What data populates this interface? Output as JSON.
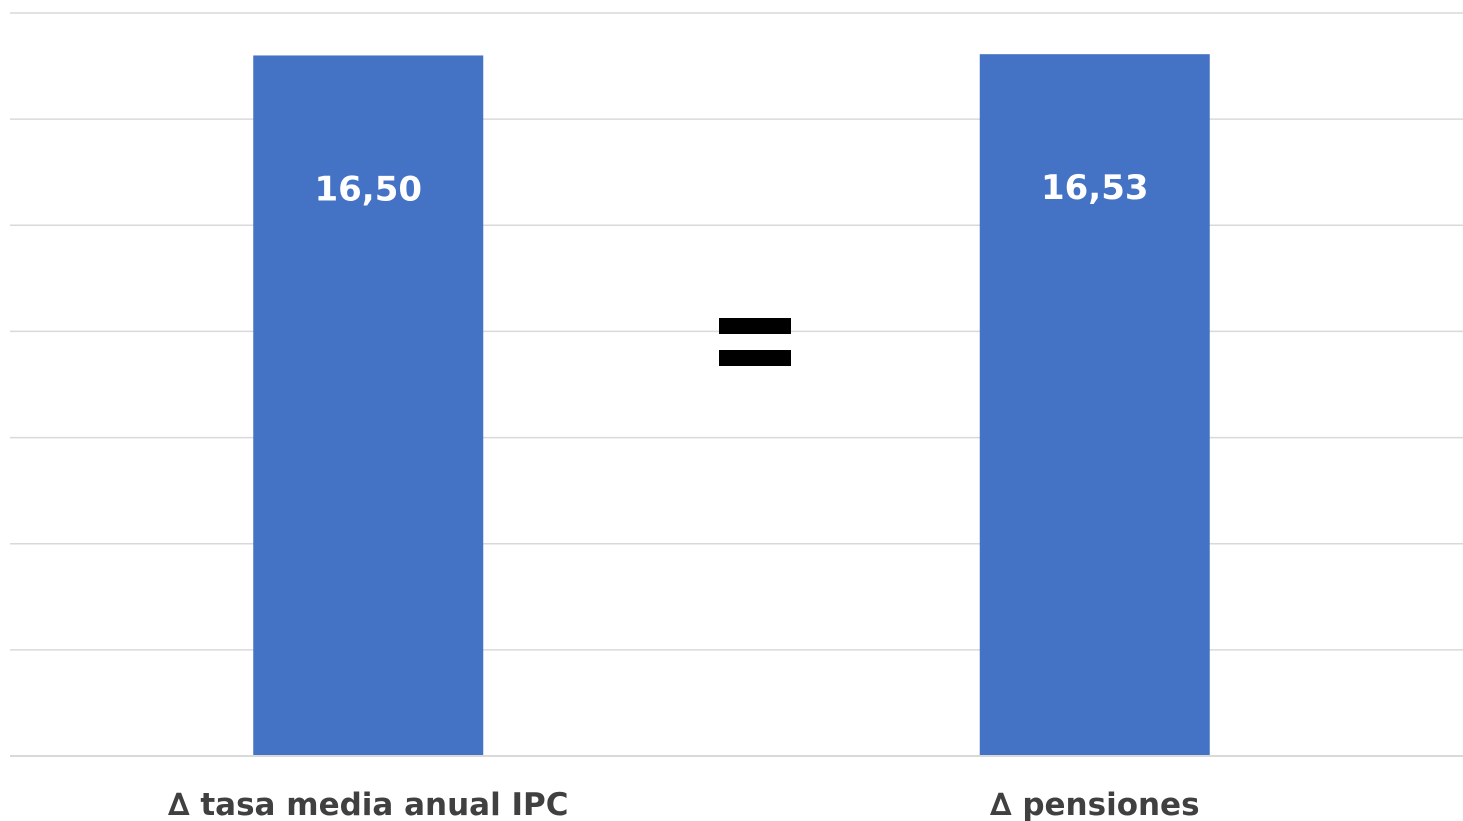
{
  "chart_data": {
    "type": "bar",
    "categories": [
      "∆ tasa media anual IPC",
      "∆ pensiones"
    ],
    "values": [
      16.5,
      16.53
    ],
    "data_labels": [
      "16,50",
      "16,53"
    ],
    "ylim": [
      0,
      17.5
    ],
    "grid": true,
    "gridline_step": 2.5,
    "bar_color": "#4472c4",
    "title": "",
    "xlabel": "",
    "ylabel": ""
  },
  "annotation": {
    "symbol_name": "equals-sign",
    "color": "#000000"
  }
}
